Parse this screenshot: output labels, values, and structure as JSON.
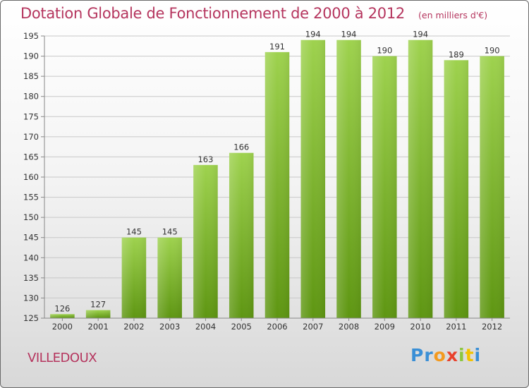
{
  "title": "Dotation Globale de Fonctionnement de 2000 à 2012",
  "unit_note": "(en milliers d'€)",
  "commune": "VILLEDOUX",
  "logo": {
    "letters": [
      "P",
      "r",
      "o",
      "x",
      "i",
      "t",
      "i"
    ],
    "colors": [
      "#3a8fd6",
      "#3a8fd6",
      "#f39a1f",
      "#e8412c",
      "#8cc63f",
      "#f2c200",
      "#3a8fd6"
    ]
  },
  "colors": {
    "title": "#b5355e",
    "bar_light": "#9ed24e",
    "bar_dark": "#5e9612",
    "grid": "#c8c8c8",
    "axis": "#888888"
  },
  "chart_data": {
    "type": "bar",
    "categories": [
      "2000",
      "2001",
      "2002",
      "2003",
      "2004",
      "2005",
      "2006",
      "2007",
      "2008",
      "2009",
      "2010",
      "2011",
      "2012"
    ],
    "values": [
      126,
      127,
      145,
      145,
      163,
      166,
      191,
      194,
      194,
      190,
      194,
      189,
      190
    ],
    "ylim": [
      125,
      195
    ],
    "yticks": [
      125,
      130,
      135,
      140,
      145,
      150,
      155,
      160,
      165,
      170,
      175,
      180,
      185,
      190,
      195
    ],
    "grid": true,
    "data_labels": true
  }
}
